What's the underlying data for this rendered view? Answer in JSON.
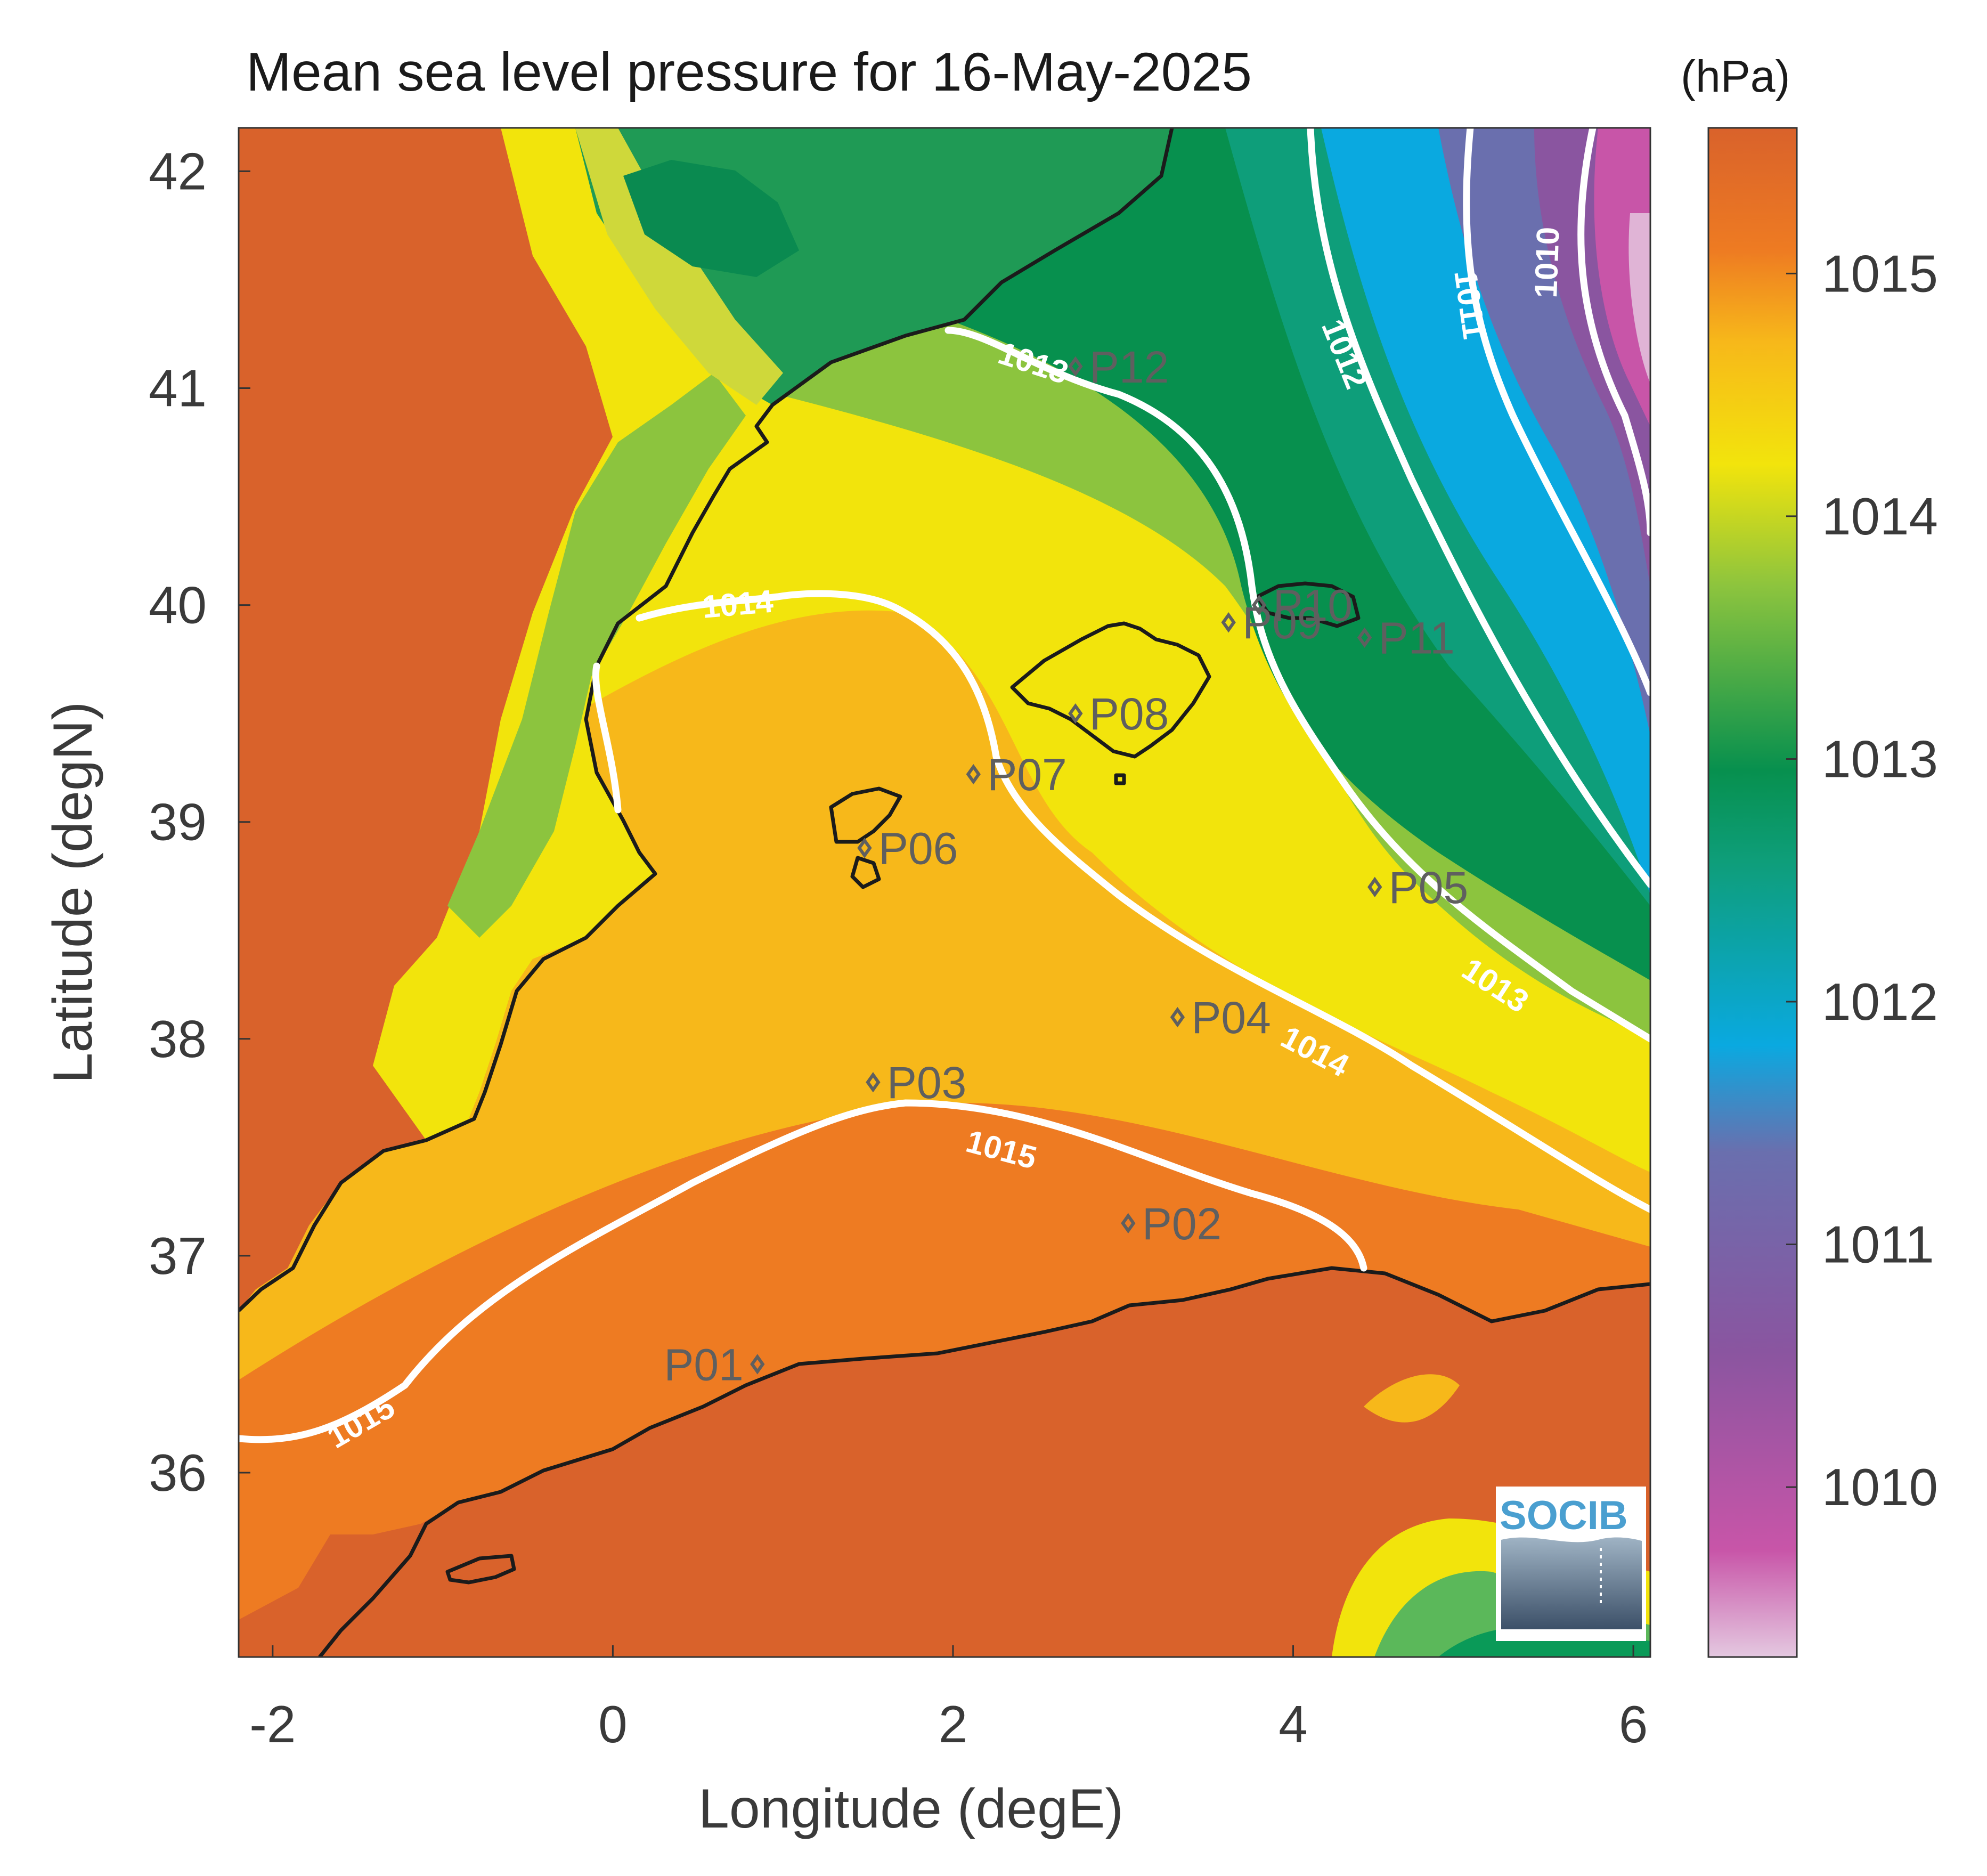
{
  "title": "Mean sea level pressure for 16-May-2025",
  "colorbar": {
    "unit": "(hPa)",
    "ticks": [
      1010,
      1011,
      1012,
      1013,
      1014,
      1015
    ],
    "range": [
      1009.3,
      1015.6
    ],
    "palette": [
      "#e4c8e0",
      "#c855a8",
      "#8a55a0",
      "#6a6fae",
      "#0aa9e0",
      "#0e9e7a",
      "#07904e",
      "#8cc43e",
      "#f2e40c",
      "#f7b81a",
      "#ee7b22",
      "#d9622b"
    ]
  },
  "axes": {
    "xlabel": "Longitude (degE)",
    "ylabel": "Latitude (degN)",
    "xlim": [
      -2.2,
      6.1
    ],
    "ylim": [
      35.15,
      42.2
    ],
    "xticks": [
      "-2",
      "0",
      "2",
      "4",
      "6"
    ],
    "yticks": [
      "36",
      "37",
      "38",
      "39",
      "40",
      "41",
      "42"
    ]
  },
  "contour_levels": [
    "1010",
    "1011",
    "1012",
    "1013",
    "1013",
    "1014",
    "1014",
    "1015",
    "1015"
  ],
  "points": [
    {
      "id": "P01",
      "lon": 0.85,
      "lat": 36.5
    },
    {
      "id": "P02",
      "lon": 3.03,
      "lat": 37.15
    },
    {
      "id": "P03",
      "lon": 1.53,
      "lat": 37.8
    },
    {
      "id": "P04",
      "lon": 3.32,
      "lat": 38.1
    },
    {
      "id": "P05",
      "lon": 4.48,
      "lat": 38.7
    },
    {
      "id": "P06",
      "lon": 1.48,
      "lat": 38.88
    },
    {
      "id": "P07",
      "lon": 2.12,
      "lat": 39.22
    },
    {
      "id": "P08",
      "lon": 2.72,
      "lat": 39.5
    },
    {
      "id": "P09",
      "lon": 3.62,
      "lat": 39.92
    },
    {
      "id": "P10",
      "lon": 3.8,
      "lat": 40.0
    },
    {
      "id": "P11",
      "lon": 4.42,
      "lat": 39.85
    },
    {
      "id": "P12",
      "lon": 2.72,
      "lat": 41.1
    }
  ],
  "logo_text": "SOCIB"
}
